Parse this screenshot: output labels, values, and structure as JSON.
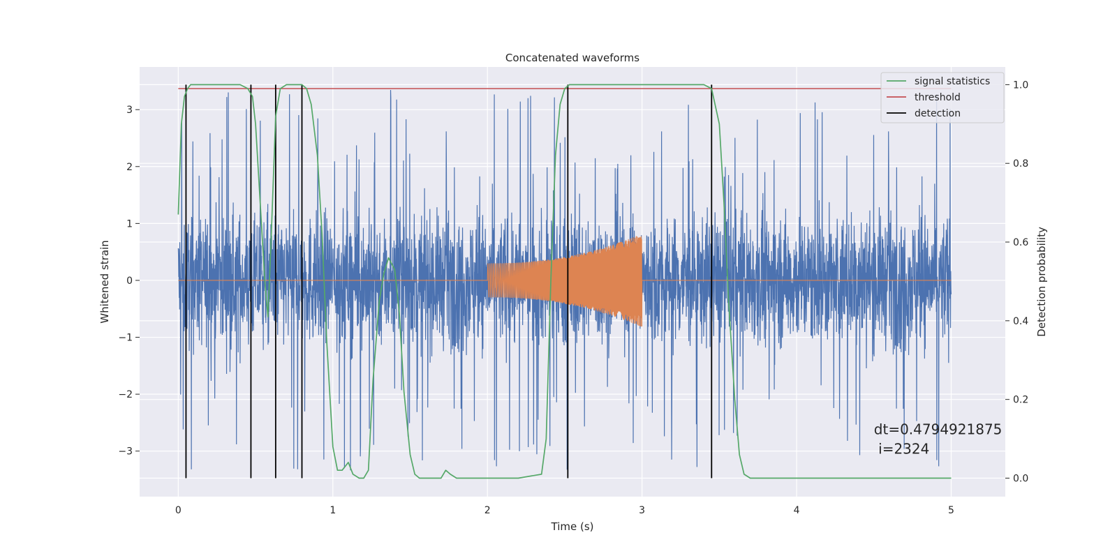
{
  "chart_data": {
    "type": "line",
    "title": "Concatenated waveforms",
    "xlabel": "Time (s)",
    "ylabel": "Whitened strain",
    "y2label": "Detection probability",
    "xlim": [
      -0.25,
      5.35
    ],
    "ylim": [
      -3.8,
      3.75
    ],
    "y2lim": [
      -0.047,
      1.045
    ],
    "xticks": [
      0,
      1,
      2,
      3,
      4,
      5
    ],
    "yticks": [
      -3,
      -2,
      -1,
      0,
      1,
      2,
      3
    ],
    "y2ticks": [
      0.0,
      0.2,
      0.4,
      0.6,
      0.8,
      1.0
    ],
    "grid": true,
    "legend_position": "top-right",
    "legend": [
      "signal statistics",
      "threshold",
      "detection"
    ],
    "colors": {
      "strain": "#4c72b0",
      "injection": "#dd8452",
      "signal_statistics": "#55a868",
      "threshold": "#c44e52",
      "detection": "#000000",
      "background": "#eaeaf2",
      "grid": "#ffffff"
    },
    "series": [
      {
        "name": "strain",
        "axis": "left",
        "style": "noise",
        "x_range": [
          0,
          5
        ],
        "envelope": 3.4
      },
      {
        "name": "injection",
        "axis": "left",
        "style": "chirp",
        "x_range": [
          2,
          3
        ],
        "amplitude_start": 0.3,
        "amplitude_end": 0.82
      },
      {
        "name": "signal statistics",
        "axis": "right",
        "x": [
          0.0,
          0.02,
          0.04,
          0.06,
          0.08,
          0.1,
          0.2,
          0.3,
          0.4,
          0.45,
          0.48,
          0.5,
          0.53,
          0.56,
          0.58,
          0.6,
          0.63,
          0.66,
          0.7,
          0.8,
          0.83,
          0.86,
          0.9,
          0.93,
          0.96,
          1.0,
          1.03,
          1.06,
          1.1,
          1.13,
          1.17,
          1.2,
          1.23,
          1.26,
          1.3,
          1.33,
          1.36,
          1.4,
          1.43,
          1.46,
          1.5,
          1.53,
          1.56,
          1.6,
          1.7,
          1.73,
          1.76,
          1.8,
          1.9,
          2.0,
          2.2,
          2.35,
          2.38,
          2.41,
          2.44,
          2.47,
          2.5,
          2.53,
          2.56,
          2.6,
          3.0,
          3.4,
          3.45,
          3.5,
          3.53,
          3.56,
          3.6,
          3.63,
          3.66,
          3.7,
          3.8,
          4.0,
          5.0
        ],
        "y": [
          0.67,
          0.9,
          0.97,
          0.99,
          1.0,
          1.0,
          1.0,
          1.0,
          1.0,
          0.99,
          0.97,
          0.9,
          0.7,
          0.5,
          0.41,
          0.6,
          0.92,
          0.99,
          1.0,
          1.0,
          0.99,
          0.95,
          0.82,
          0.62,
          0.35,
          0.08,
          0.02,
          0.02,
          0.04,
          0.01,
          0.0,
          0.0,
          0.02,
          0.25,
          0.45,
          0.52,
          0.56,
          0.53,
          0.42,
          0.22,
          0.06,
          0.01,
          0.0,
          0.0,
          0.0,
          0.02,
          0.01,
          0.0,
          0.0,
          0.0,
          0.0,
          0.01,
          0.1,
          0.5,
          0.82,
          0.95,
          0.99,
          1.0,
          1.0,
          1.0,
          1.0,
          1.0,
          0.99,
          0.9,
          0.7,
          0.45,
          0.2,
          0.06,
          0.01,
          0.0,
          0.0,
          0.0,
          0.0
        ]
      },
      {
        "name": "threshold",
        "axis": "right",
        "x": [
          0,
          5
        ],
        "y": [
          0.99,
          0.99
        ]
      }
    ],
    "detections": [
      0.05,
      0.47,
      0.63,
      0.8,
      2.52,
      3.45
    ],
    "annotation": {
      "line1": "dt=0.4794921875",
      "line2": " i=2324",
      "x": 4.5,
      "y": -2.7
    }
  }
}
